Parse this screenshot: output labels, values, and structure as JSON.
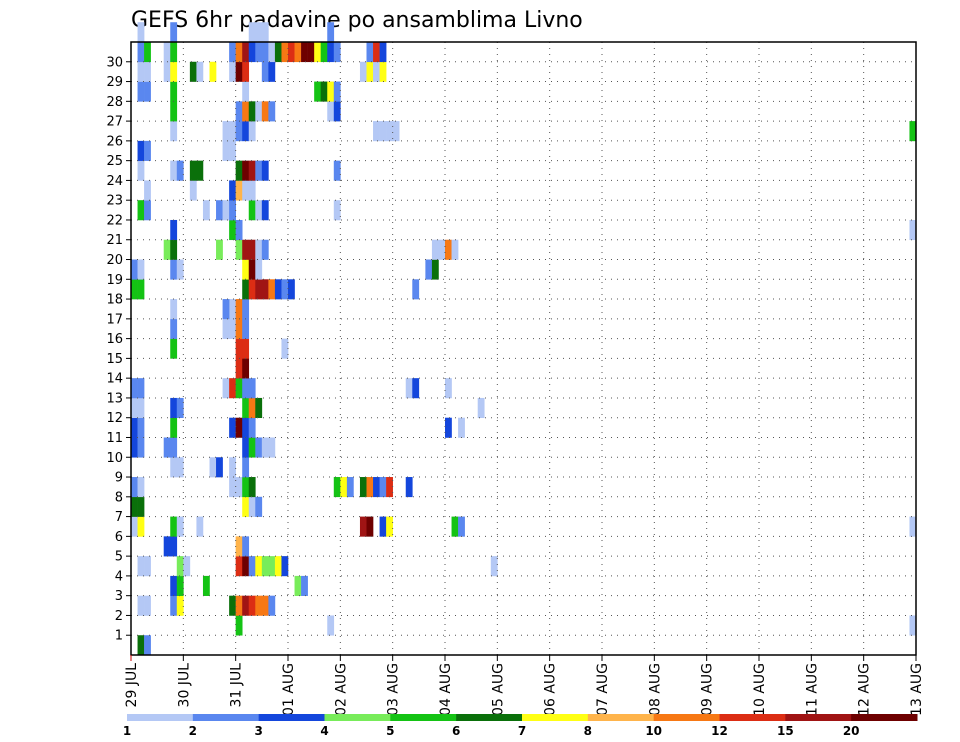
{
  "chart_data": {
    "type": "heatmap",
    "title": "GEFS 6hr padavine po ansamblima Livno",
    "xlabel": "",
    "ylabel": "",
    "x_ticks": [
      "29 JUL",
      "30 JUL",
      "31 JUL",
      "01 AUG",
      "02 AUG",
      "03 AUG",
      "04 AUG",
      "05 AUG",
      "06 AUG",
      "07 AUG",
      "08 AUG",
      "09 AUG",
      "10 AUG",
      "11 AUG",
      "12 AUG",
      "13 AUG"
    ],
    "y_ticks": [
      1,
      2,
      3,
      4,
      5,
      6,
      7,
      8,
      9,
      10,
      11,
      12,
      13,
      14,
      15,
      16,
      17,
      18,
      19,
      20,
      21,
      22,
      23,
      24,
      25,
      26,
      27,
      28,
      29,
      30
    ],
    "x_step_hours": 6,
    "grid": true,
    "colorbar": {
      "levels": [
        "1",
        "2",
        "3",
        "4",
        "5",
        "6",
        "7",
        "8",
        "10",
        "12",
        "15",
        "20"
      ],
      "colors": [
        "#b4c8f5",
        "#5a87ef",
        "#1446dc",
        "#78ec5a",
        "#14c314",
        "#0a700a",
        "#ffff14",
        "#ffb44b",
        "#f77814",
        "#dc2d14",
        "#a01414",
        "#6e0000"
      ]
    },
    "cells": [
      {
        "m": 0,
        "s": 1,
        "c": 5
      },
      {
        "m": 0,
        "s": 2,
        "c": 1
      },
      {
        "m": 1,
        "s": 16,
        "c": 4
      },
      {
        "m": 1,
        "s": 30,
        "c": 0
      },
      {
        "m": 1,
        "s": 119,
        "c": 0
      },
      {
        "m": 2,
        "s": 1,
        "c": 0
      },
      {
        "m": 2,
        "s": 2,
        "c": 0
      },
      {
        "m": 2,
        "s": 6,
        "c": 1
      },
      {
        "m": 2,
        "s": 7,
        "c": 6
      },
      {
        "m": 2,
        "s": 15,
        "c": 5
      },
      {
        "m": 2,
        "s": 16,
        "c": 8
      },
      {
        "m": 2,
        "s": 17,
        "c": 10
      },
      {
        "m": 2,
        "s": 18,
        "c": 9
      },
      {
        "m": 2,
        "s": 19,
        "c": 8
      },
      {
        "m": 2,
        "s": 20,
        "c": 8
      },
      {
        "m": 2,
        "s": 21,
        "c": 1
      },
      {
        "m": 3,
        "s": 6,
        "c": 2
      },
      {
        "m": 3,
        "s": 7,
        "c": 4
      },
      {
        "m": 3,
        "s": 11,
        "c": 4
      },
      {
        "m": 3,
        "s": 25,
        "c": 3
      },
      {
        "m": 3,
        "s": 26,
        "c": 1
      },
      {
        "m": 4,
        "s": 1,
        "c": 0
      },
      {
        "m": 4,
        "s": 2,
        "c": 0
      },
      {
        "m": 4,
        "s": 7,
        "c": 3
      },
      {
        "m": 4,
        "s": 8,
        "c": 0
      },
      {
        "m": 4,
        "s": 16,
        "c": 9
      },
      {
        "m": 4,
        "s": 17,
        "c": 11
      },
      {
        "m": 4,
        "s": 18,
        "c": 1
      },
      {
        "m": 4,
        "s": 19,
        "c": 6
      },
      {
        "m": 4,
        "s": 20,
        "c": 3
      },
      {
        "m": 4,
        "s": 21,
        "c": 3
      },
      {
        "m": 4,
        "s": 22,
        "c": 6
      },
      {
        "m": 4,
        "s": 23,
        "c": 2
      },
      {
        "m": 4,
        "s": 55,
        "c": 0
      },
      {
        "m": 5,
        "s": 5,
        "c": 2
      },
      {
        "m": 5,
        "s": 6,
        "c": 2
      },
      {
        "m": 5,
        "s": 16,
        "c": 7
      },
      {
        "m": 5,
        "s": 17,
        "c": 1
      },
      {
        "m": 6,
        "s": 0,
        "c": 0
      },
      {
        "m": 6,
        "s": 1,
        "c": 6
      },
      {
        "m": 6,
        "s": 6,
        "c": 4
      },
      {
        "m": 6,
        "s": 7,
        "c": 0
      },
      {
        "m": 6,
        "s": 10,
        "c": 0
      },
      {
        "m": 6,
        "s": 35,
        "c": 10
      },
      {
        "m": 6,
        "s": 36,
        "c": 11
      },
      {
        "m": 6,
        "s": 38,
        "c": 2
      },
      {
        "m": 6,
        "s": 39,
        "c": 6
      },
      {
        "m": 6,
        "s": 49,
        "c": 4
      },
      {
        "m": 6,
        "s": 50,
        "c": 1
      },
      {
        "m": 6,
        "s": 119,
        "c": 0
      },
      {
        "m": 7,
        "s": 0,
        "c": 5
      },
      {
        "m": 7,
        "s": 1,
        "c": 5
      },
      {
        "m": 7,
        "s": 17,
        "c": 6
      },
      {
        "m": 7,
        "s": 18,
        "c": 0
      },
      {
        "m": 7,
        "s": 19,
        "c": 1
      },
      {
        "m": 8,
        "s": 0,
        "c": 1
      },
      {
        "m": 8,
        "s": 1,
        "c": 0
      },
      {
        "m": 8,
        "s": 15,
        "c": 0
      },
      {
        "m": 8,
        "s": 16,
        "c": 0
      },
      {
        "m": 8,
        "s": 17,
        "c": 4
      },
      {
        "m": 8,
        "s": 18,
        "c": 5
      },
      {
        "m": 8,
        "s": 31,
        "c": 4
      },
      {
        "m": 8,
        "s": 32,
        "c": 6
      },
      {
        "m": 8,
        "s": 33,
        "c": 1
      },
      {
        "m": 8,
        "s": 35,
        "c": 5
      },
      {
        "m": 8,
        "s": 36,
        "c": 8
      },
      {
        "m": 8,
        "s": 37,
        "c": 2
      },
      {
        "m": 8,
        "s": 38,
        "c": 1
      },
      {
        "m": 8,
        "s": 39,
        "c": 9
      },
      {
        "m": 8,
        "s": 42,
        "c": 2
      },
      {
        "m": 9,
        "s": 6,
        "c": 0
      },
      {
        "m": 9,
        "s": 7,
        "c": 0
      },
      {
        "m": 9,
        "s": 15,
        "c": 0
      },
      {
        "m": 9,
        "s": 17,
        "c": 1
      },
      {
        "m": 9,
        "s": 12,
        "c": 0
      },
      {
        "m": 9,
        "s": 13,
        "c": 2
      },
      {
        "m": 10,
        "s": 0,
        "c": 2
      },
      {
        "m": 10,
        "s": 1,
        "c": 1
      },
      {
        "m": 10,
        "s": 5,
        "c": 1
      },
      {
        "m": 10,
        "s": 6,
        "c": 1
      },
      {
        "m": 10,
        "s": 17,
        "c": 2
      },
      {
        "m": 10,
        "s": 18,
        "c": 4
      },
      {
        "m": 10,
        "s": 19,
        "c": 1
      },
      {
        "m": 10,
        "s": 20,
        "c": 0
      },
      {
        "m": 10,
        "s": 21,
        "c": 0
      },
      {
        "m": 11,
        "s": 0,
        "c": 2
      },
      {
        "m": 11,
        "s": 1,
        "c": 1
      },
      {
        "m": 11,
        "s": 6,
        "c": 4
      },
      {
        "m": 11,
        "s": 15,
        "c": 2
      },
      {
        "m": 11,
        "s": 16,
        "c": 11
      },
      {
        "m": 11,
        "s": 17,
        "c": 2
      },
      {
        "m": 11,
        "s": 18,
        "c": 1
      },
      {
        "m": 11,
        "s": 48,
        "c": 2
      },
      {
        "m": 11,
        "s": 50,
        "c": 0
      },
      {
        "m": 12,
        "s": 0,
        "c": 0
      },
      {
        "m": 12,
        "s": 1,
        "c": 0
      },
      {
        "m": 12,
        "s": 6,
        "c": 2
      },
      {
        "m": 12,
        "s": 7,
        "c": 1
      },
      {
        "m": 12,
        "s": 17,
        "c": 4
      },
      {
        "m": 12,
        "s": 18,
        "c": 8
      },
      {
        "m": 12,
        "s": 19,
        "c": 5
      },
      {
        "m": 12,
        "s": 53,
        "c": 0
      },
      {
        "m": 13,
        "s": 0,
        "c": 1
      },
      {
        "m": 13,
        "s": 1,
        "c": 1
      },
      {
        "m": 13,
        "s": 14,
        "c": 0
      },
      {
        "m": 13,
        "s": 15,
        "c": 9
      },
      {
        "m": 13,
        "s": 16,
        "c": 4
      },
      {
        "m": 13,
        "s": 17,
        "c": 1
      },
      {
        "m": 13,
        "s": 18,
        "c": 1
      },
      {
        "m": 13,
        "s": 42,
        "c": 0
      },
      {
        "m": 13,
        "s": 43,
        "c": 2
      },
      {
        "m": 13,
        "s": 48,
        "c": 0
      },
      {
        "m": 14,
        "s": 16,
        "c": 9
      },
      {
        "m": 14,
        "s": 17,
        "c": 11
      },
      {
        "m": 15,
        "s": 6,
        "c": 4
      },
      {
        "m": 15,
        "s": 16,
        "c": 9
      },
      {
        "m": 15,
        "s": 17,
        "c": 9
      },
      {
        "m": 15,
        "s": 23,
        "c": 0
      },
      {
        "m": 16,
        "s": 6,
        "c": 1
      },
      {
        "m": 16,
        "s": 15,
        "c": 0
      },
      {
        "m": 16,
        "s": 16,
        "c": 8
      },
      {
        "m": 16,
        "s": 17,
        "c": 1
      },
      {
        "m": 16,
        "s": 14,
        "c": 0
      },
      {
        "m": 17,
        "s": 6,
        "c": 0
      },
      {
        "m": 17,
        "s": 15,
        "c": 0
      },
      {
        "m": 17,
        "s": 16,
        "c": 8
      },
      {
        "m": 17,
        "s": 17,
        "c": 1
      },
      {
        "m": 17,
        "s": 14,
        "c": 1
      },
      {
        "m": 18,
        "s": 0,
        "c": 4
      },
      {
        "m": 18,
        "s": 1,
        "c": 4
      },
      {
        "m": 18,
        "s": 17,
        "c": 5
      },
      {
        "m": 18,
        "s": 18,
        "c": 9
      },
      {
        "m": 18,
        "s": 19,
        "c": 10
      },
      {
        "m": 18,
        "s": 20,
        "c": 10
      },
      {
        "m": 18,
        "s": 21,
        "c": 8
      },
      {
        "m": 18,
        "s": 22,
        "c": 2
      },
      {
        "m": 18,
        "s": 23,
        "c": 1
      },
      {
        "m": 18,
        "s": 24,
        "c": 2
      },
      {
        "m": 18,
        "s": 43,
        "c": 1
      },
      {
        "m": 19,
        "s": 0,
        "c": 1
      },
      {
        "m": 19,
        "s": 1,
        "c": 0
      },
      {
        "m": 19,
        "s": 6,
        "c": 1
      },
      {
        "m": 19,
        "s": 7,
        "c": 0
      },
      {
        "m": 19,
        "s": 17,
        "c": 6
      },
      {
        "m": 19,
        "s": 18,
        "c": 11
      },
      {
        "m": 19,
        "s": 19,
        "c": 0
      },
      {
        "m": 19,
        "s": 45,
        "c": 1
      },
      {
        "m": 19,
        "s": 46,
        "c": 5
      },
      {
        "m": 20,
        "s": 5,
        "c": 3
      },
      {
        "m": 20,
        "s": 6,
        "c": 5
      },
      {
        "m": 20,
        "s": 13,
        "c": 3
      },
      {
        "m": 20,
        "s": 16,
        "c": 3
      },
      {
        "m": 20,
        "s": 17,
        "c": 10
      },
      {
        "m": 20,
        "s": 18,
        "c": 10
      },
      {
        "m": 20,
        "s": 19,
        "c": 0
      },
      {
        "m": 20,
        "s": 20,
        "c": 1
      },
      {
        "m": 20,
        "s": 46,
        "c": 0
      },
      {
        "m": 20,
        "s": 47,
        "c": 0
      },
      {
        "m": 20,
        "s": 48,
        "c": 8
      },
      {
        "m": 20,
        "s": 49,
        "c": 0
      },
      {
        "m": 21,
        "s": 6,
        "c": 2
      },
      {
        "m": 21,
        "s": 15,
        "c": 4
      },
      {
        "m": 21,
        "s": 16,
        "c": 1
      },
      {
        "m": 21,
        "s": 119,
        "c": 0
      },
      {
        "m": 22,
        "s": 1,
        "c": 4
      },
      {
        "m": 22,
        "s": 2,
        "c": 1
      },
      {
        "m": 22,
        "s": 11,
        "c": 0
      },
      {
        "m": 22,
        "s": 13,
        "c": 1
      },
      {
        "m": 22,
        "s": 15,
        "c": 1
      },
      {
        "m": 22,
        "s": 14,
        "c": 0
      },
      {
        "m": 22,
        "s": 15,
        "c": 1
      },
      {
        "m": 22,
        "s": 18,
        "c": 4
      },
      {
        "m": 22,
        "s": 19,
        "c": 0
      },
      {
        "m": 22,
        "s": 20,
        "c": 2
      },
      {
        "m": 22,
        "s": 31,
        "c": 0
      },
      {
        "m": 23,
        "s": 2,
        "c": 0
      },
      {
        "m": 23,
        "s": 9,
        "c": 0
      },
      {
        "m": 23,
        "s": 15,
        "c": 2
      },
      {
        "m": 23,
        "s": 16,
        "c": 7
      },
      {
        "m": 23,
        "s": 17,
        "c": 0
      },
      {
        "m": 23,
        "s": 18,
        "c": 0
      },
      {
        "m": 24,
        "s": 1,
        "c": 0
      },
      {
        "m": 24,
        "s": 6,
        "c": 0
      },
      {
        "m": 24,
        "s": 7,
        "c": 1
      },
      {
        "m": 24,
        "s": 9,
        "c": 5
      },
      {
        "m": 24,
        "s": 10,
        "c": 5
      },
      {
        "m": 24,
        "s": 16,
        "c": 5
      },
      {
        "m": 24,
        "s": 17,
        "c": 11
      },
      {
        "m": 24,
        "s": 18,
        "c": 10
      },
      {
        "m": 24,
        "s": 19,
        "c": 1
      },
      {
        "m": 24,
        "s": 20,
        "c": 2
      },
      {
        "m": 24,
        "s": 31,
        "c": 1
      },
      {
        "m": 25,
        "s": 1,
        "c": 2
      },
      {
        "m": 25,
        "s": 2,
        "c": 1
      },
      {
        "m": 25,
        "s": 14,
        "c": 0
      },
      {
        "m": 25,
        "s": 15,
        "c": 0
      },
      {
        "m": 26,
        "s": 6,
        "c": 0
      },
      {
        "m": 26,
        "s": 14,
        "c": 0
      },
      {
        "m": 26,
        "s": 15,
        "c": 0
      },
      {
        "m": 26,
        "s": 16,
        "c": 1
      },
      {
        "m": 26,
        "s": 17,
        "c": 2
      },
      {
        "m": 26,
        "s": 18,
        "c": 0
      },
      {
        "m": 26,
        "s": 37,
        "c": 0
      },
      {
        "m": 26,
        "s": 38,
        "c": 0
      },
      {
        "m": 26,
        "s": 39,
        "c": 0
      },
      {
        "m": 26,
        "s": 40,
        "c": 0
      },
      {
        "m": 26,
        "s": 119,
        "c": 4
      },
      {
        "m": 27,
        "s": 6,
        "c": 4
      },
      {
        "m": 27,
        "s": 16,
        "c": 1
      },
      {
        "m": 27,
        "s": 17,
        "c": 8
      },
      {
        "m": 27,
        "s": 18,
        "c": 5
      },
      {
        "m": 27,
        "s": 19,
        "c": 0
      },
      {
        "m": 27,
        "s": 20,
        "c": 8
      },
      {
        "m": 27,
        "s": 21,
        "c": 1
      },
      {
        "m": 27,
        "s": 30,
        "c": 0
      },
      {
        "m": 27,
        "s": 31,
        "c": 2
      },
      {
        "m": 28,
        "s": 1,
        "c": 1
      },
      {
        "m": 28,
        "s": 2,
        "c": 1
      },
      {
        "m": 28,
        "s": 6,
        "c": 4
      },
      {
        "m": 28,
        "s": 17,
        "c": 0
      },
      {
        "m": 28,
        "s": 28,
        "c": 4
      },
      {
        "m": 28,
        "s": 29,
        "c": 5
      },
      {
        "m": 28,
        "s": 30,
        "c": 6
      },
      {
        "m": 28,
        "s": 31,
        "c": 1
      },
      {
        "m": 29,
        "s": 1,
        "c": 0
      },
      {
        "m": 29,
        "s": 2,
        "c": 0
      },
      {
        "m": 29,
        "s": 5,
        "c": 0
      },
      {
        "m": 29,
        "s": 6,
        "c": 6
      },
      {
        "m": 29,
        "s": 9,
        "c": 5
      },
      {
        "m": 29,
        "s": 10,
        "c": 0
      },
      {
        "m": 29,
        "s": 15,
        "c": 0
      },
      {
        "m": 29,
        "s": 16,
        "c": 11
      },
      {
        "m": 29,
        "s": 17,
        "c": 9
      },
      {
        "m": 29,
        "s": 20,
        "c": 1
      },
      {
        "m": 29,
        "s": 21,
        "c": 2
      },
      {
        "m": 29,
        "s": 35,
        "c": 0
      },
      {
        "m": 29,
        "s": 36,
        "c": 6
      },
      {
        "m": 29,
        "s": 37,
        "c": 0
      },
      {
        "m": 29,
        "s": 38,
        "c": 6
      },
      {
        "m": 29,
        "s": 12,
        "c": 6
      },
      {
        "m": 30,
        "s": 1,
        "c": 1
      },
      {
        "m": 30,
        "s": 2,
        "c": 4
      },
      {
        "m": 30,
        "s": 5,
        "c": 0
      },
      {
        "m": 30,
        "s": 6,
        "c": 4
      },
      {
        "m": 30,
        "s": 15,
        "c": 1
      },
      {
        "m": 30,
        "s": 16,
        "c": 8
      },
      {
        "m": 30,
        "s": 17,
        "c": 10
      },
      {
        "m": 30,
        "s": 18,
        "c": 2
      },
      {
        "m": 30,
        "s": 19,
        "c": 1
      },
      {
        "m": 30,
        "s": 20,
        "c": 1
      },
      {
        "m": 30,
        "s": 21,
        "c": 0
      },
      {
        "m": 30,
        "s": 22,
        "c": 5
      },
      {
        "m": 30,
        "s": 23,
        "c": 8
      },
      {
        "m": 30,
        "s": 24,
        "c": 9
      },
      {
        "m": 30,
        "s": 25,
        "c": 8
      },
      {
        "m": 30,
        "s": 26,
        "c": 11
      },
      {
        "m": 30,
        "s": 27,
        "c": 11
      },
      {
        "m": 30,
        "s": 28,
        "c": 6
      },
      {
        "m": 30,
        "s": 29,
        "c": 4
      },
      {
        "m": 30,
        "s": 30,
        "c": 2
      },
      {
        "m": 30,
        "s": 31,
        "c": 1
      },
      {
        "m": 30,
        "s": 36,
        "c": 1
      },
      {
        "m": 30,
        "s": 37,
        "c": 9
      },
      {
        "m": 30,
        "s": 38,
        "c": 2
      },
      {
        "m": 31,
        "s": 1,
        "c": 0
      },
      {
        "m": 31,
        "s": 6,
        "c": 1
      },
      {
        "m": 31,
        "s": 18,
        "c": 0
      },
      {
        "m": 31,
        "s": 19,
        "c": 0
      },
      {
        "m": 31,
        "s": 20,
        "c": 0
      },
      {
        "m": 31,
        "s": 30,
        "c": 1
      }
    ]
  }
}
